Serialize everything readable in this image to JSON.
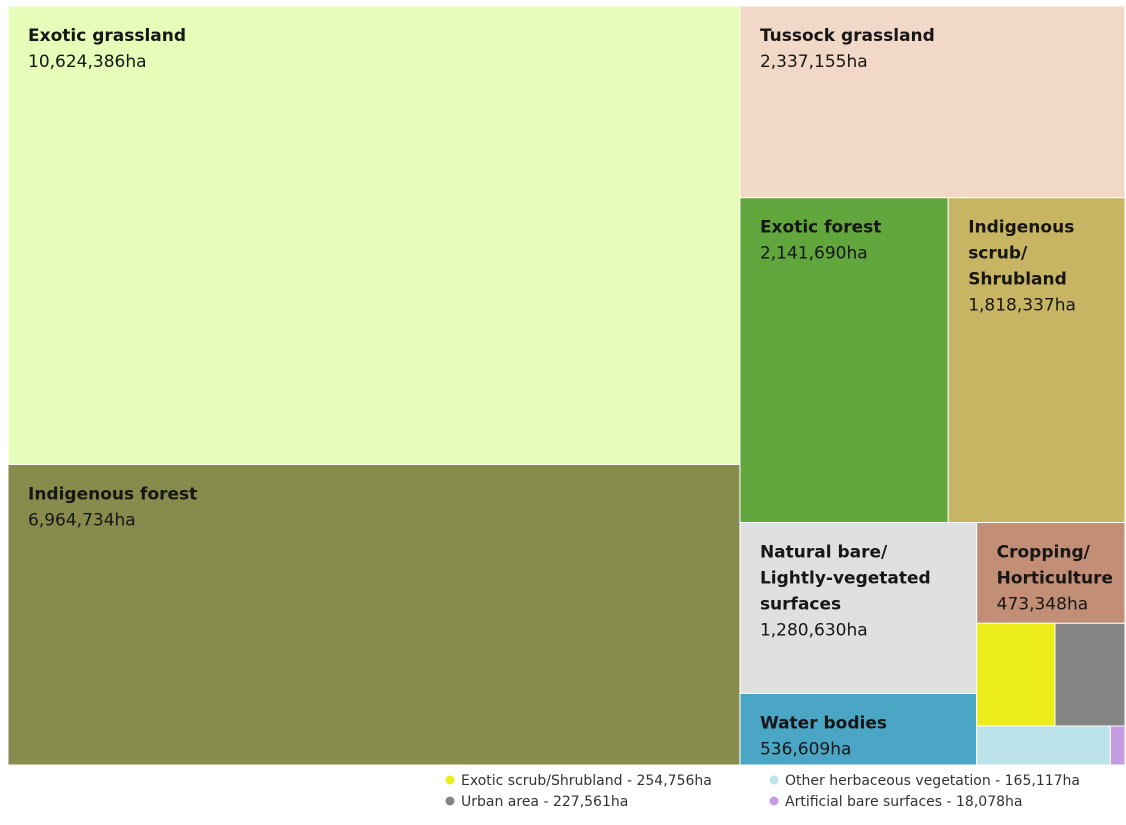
{
  "chart_data": {
    "type": "treemap",
    "categories": [
      "Exotic grassland",
      "Indigenous forest",
      "Tussock grassland",
      "Exotic forest",
      "Indigenous scrub/ Shrubland",
      "Natural bare/ Lightly-vegetated surfaces",
      "Water bodies",
      "Cropping/ Horticulture",
      "Exotic scrub/Shrubland",
      "Urban area",
      "Other herbaceous vegetation",
      "Artificial bare surfaces"
    ],
    "values": [
      10624386,
      6964734,
      2337155,
      2141690,
      1818337,
      1280630,
      536609,
      473348,
      254756,
      227561,
      165117,
      18078
    ],
    "value_labels": [
      "10,624,386ha",
      "6,964,734ha",
      "2,337,155ha",
      "2,141,690ha",
      "1,818,337ha",
      "1,280,630ha",
      "536,609ha",
      "473,348ha",
      "254,756ha",
      "227,561ha",
      "165,117ha",
      "18,078ha"
    ],
    "colors": [
      "#e5fdb9",
      "#878c4d",
      "#f2d8c6",
      "#62a63e",
      "#c8b563",
      "#e0e0e0",
      "#4aa6c4",
      "#c28e75",
      "#eded1c",
      "#858585",
      "#bde3ea",
      "#c49ae0"
    ]
  }
}
